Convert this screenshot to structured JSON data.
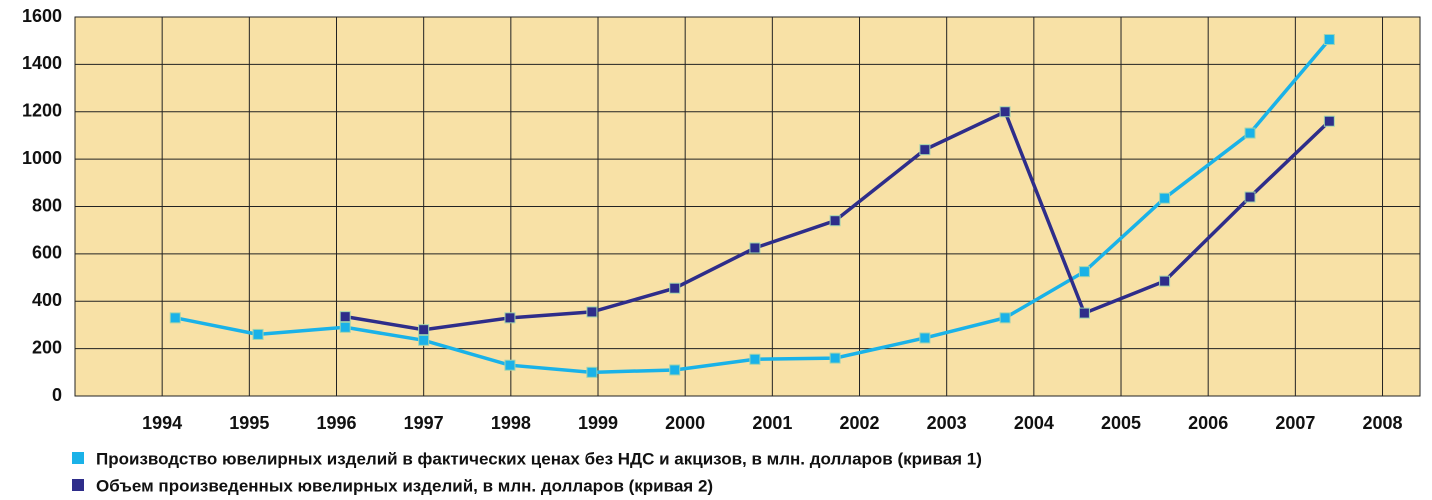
{
  "chart_data": {
    "type": "line",
    "x": [
      1994.15,
      1995.1,
      1996.1,
      1997.0,
      1997.99,
      1998.93,
      1999.88,
      2000.8,
      2001.72,
      2002.75,
      2003.67,
      2004.58,
      2005.5,
      2006.48,
      2007.39
    ],
    "series": [
      {
        "name": "Производство ювелирных изделий  в фактических ценах без НДС и акцизов, в млн. долларов (кривая 1)",
        "color": "#1ab2e8",
        "values": [
          330,
          260,
          290,
          235,
          130,
          100,
          110,
          155,
          160,
          245,
          330,
          525,
          835,
          1110,
          1505
        ]
      },
      {
        "name": "Объем произведенных ювелирных изделий, в млн. долларов (кривая 2)",
        "color": "#2e2d8a",
        "values": [
          null,
          null,
          335,
          280,
          330,
          355,
          455,
          625,
          740,
          1040,
          1200,
          350,
          485,
          840,
          1160
        ]
      }
    ],
    "xlim": [
      1993,
      2008.43
    ],
    "xticks": [
      1994,
      1995,
      1996,
      1997,
      1998,
      1999,
      2000,
      2001,
      2002,
      2003,
      2004,
      2005,
      2006,
      2007,
      2008
    ],
    "ylim": [
      0,
      1600
    ],
    "yticks": [
      0,
      200,
      400,
      600,
      800,
      1000,
      1200,
      1400,
      1600
    ],
    "grid": true
  }
}
